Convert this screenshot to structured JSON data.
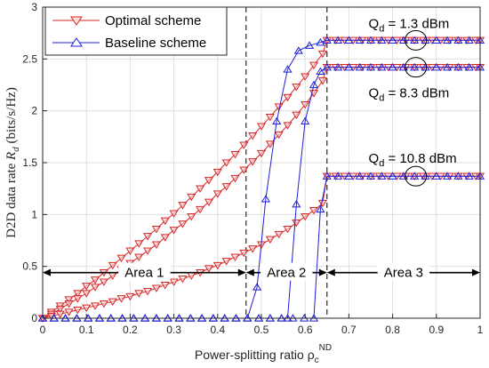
{
  "chart_data": {
    "type": "line",
    "xlabel": "Power-splitting ratio ρ",
    "xlabel_sub": "c",
    "xlabel_sup": "ND",
    "ylabel": "D2D data rate ",
    "ylabel_var": "R",
    "ylabel_sub": "d",
    "ylabel_unit": " (bits/s/Hz)",
    "xlim": [
      0,
      1
    ],
    "ylim": [
      0,
      3
    ],
    "xticks": [
      "0",
      "0.1",
      "0.2",
      "0.3",
      "0.4",
      "0.5",
      "0.6",
      "0.7",
      "0.8",
      "0.9",
      "1"
    ],
    "yticks": [
      "0",
      "0.5",
      "1",
      "1.5",
      "2",
      "2.5",
      "3"
    ],
    "grid": true,
    "legend_position": "top-left",
    "series": [
      {
        "name": "Optimal scheme",
        "color": "#d62728",
        "marker": "triangle-down",
        "groups": [
          {
            "x": [
              0,
              0.02,
              0.04,
              0.06,
              0.08,
              0.1,
              0.12,
              0.14,
              0.16,
              0.18,
              0.2,
              0.22,
              0.24,
              0.26,
              0.28,
              0.3,
              0.32,
              0.34,
              0.36,
              0.38,
              0.4,
              0.42,
              0.44,
              0.46,
              0.48,
              0.5,
              0.52,
              0.54,
              0.56,
              0.58,
              0.6,
              0.62,
              0.64,
              0.65,
              0.67,
              0.69,
              0.71,
              0.73,
              0.75,
              0.77,
              0.79,
              0.81,
              0.83,
              0.85,
              0.87,
              0.89,
              0.91,
              0.93,
              0.95,
              0.97,
              0.99,
              1.0
            ],
            "y": [
              0,
              0.06,
              0.12,
              0.18,
              0.24,
              0.31,
              0.37,
              0.44,
              0.51,
              0.58,
              0.65,
              0.72,
              0.79,
              0.86,
              0.94,
              1.01,
              1.09,
              1.17,
              1.25,
              1.33,
              1.41,
              1.5,
              1.58,
              1.67,
              1.76,
              1.85,
              1.94,
              2.04,
              2.13,
              2.23,
              2.33,
              2.44,
              2.55,
              2.68,
              2.68,
              2.68,
              2.68,
              2.68,
              2.68,
              2.68,
              2.68,
              2.68,
              2.68,
              2.68,
              2.68,
              2.68,
              2.68,
              2.68,
              2.68,
              2.68,
              2.68,
              2.68
            ]
          },
          {
            "x": [
              0,
              0.02,
              0.04,
              0.06,
              0.08,
              0.1,
              0.12,
              0.14,
              0.16,
              0.18,
              0.2,
              0.22,
              0.24,
              0.26,
              0.28,
              0.3,
              0.32,
              0.34,
              0.36,
              0.38,
              0.4,
              0.42,
              0.44,
              0.46,
              0.48,
              0.5,
              0.52,
              0.54,
              0.56,
              0.58,
              0.6,
              0.62,
              0.64,
              0.65,
              0.67,
              0.69,
              0.71,
              0.73,
              0.75,
              0.77,
              0.79,
              0.81,
              0.83,
              0.85,
              0.87,
              0.89,
              0.91,
              0.93,
              0.95,
              0.97,
              0.99,
              1.0
            ],
            "y": [
              0,
              0.04,
              0.09,
              0.14,
              0.19,
              0.24,
              0.3,
              0.35,
              0.41,
              0.47,
              0.53,
              0.59,
              0.65,
              0.71,
              0.78,
              0.85,
              0.91,
              0.98,
              1.05,
              1.12,
              1.2,
              1.27,
              1.35,
              1.43,
              1.51,
              1.59,
              1.68,
              1.77,
              1.86,
              1.96,
              2.06,
              2.17,
              2.29,
              2.42,
              2.42,
              2.42,
              2.42,
              2.42,
              2.42,
              2.42,
              2.42,
              2.42,
              2.42,
              2.42,
              2.42,
              2.42,
              2.42,
              2.42,
              2.42,
              2.42,
              2.42,
              2.42
            ]
          },
          {
            "x": [
              0,
              0.02,
              0.04,
              0.06,
              0.08,
              0.1,
              0.12,
              0.14,
              0.16,
              0.18,
              0.2,
              0.22,
              0.24,
              0.26,
              0.28,
              0.3,
              0.32,
              0.34,
              0.36,
              0.38,
              0.4,
              0.42,
              0.44,
              0.46,
              0.48,
              0.5,
              0.52,
              0.54,
              0.56,
              0.58,
              0.6,
              0.62,
              0.64,
              0.65,
              0.67,
              0.69,
              0.71,
              0.73,
              0.75,
              0.77,
              0.79,
              0.81,
              0.83,
              0.85,
              0.87,
              0.89,
              0.91,
              0.93,
              0.95,
              0.97,
              0.99,
              1.0
            ],
            "y": [
              0,
              0.02,
              0.04,
              0.06,
              0.08,
              0.1,
              0.12,
              0.14,
              0.16,
              0.19,
              0.21,
              0.24,
              0.26,
              0.29,
              0.32,
              0.35,
              0.38,
              0.41,
              0.44,
              0.48,
              0.51,
              0.55,
              0.59,
              0.63,
              0.67,
              0.71,
              0.76,
              0.81,
              0.86,
              0.92,
              0.98,
              1.04,
              1.11,
              1.37,
              1.37,
              1.37,
              1.37,
              1.37,
              1.37,
              1.37,
              1.37,
              1.37,
              1.37,
              1.37,
              1.37,
              1.37,
              1.37,
              1.37,
              1.37,
              1.37,
              1.37,
              1.37
            ]
          }
        ]
      },
      {
        "name": "Baseline scheme",
        "color": "#1f1fd6",
        "marker": "triangle-up",
        "groups": [
          {
            "x": [
              0,
              0.026,
              0.052,
              0.078,
              0.104,
              0.13,
              0.156,
              0.182,
              0.208,
              0.234,
              0.26,
              0.286,
              0.312,
              0.338,
              0.364,
              0.39,
              0.416,
              0.442,
              0.468,
              0.49,
              0.51,
              0.535,
              0.56,
              0.585,
              0.61,
              0.635,
              0.65,
              0.675,
              0.7,
              0.725,
              0.75,
              0.775,
              0.8,
              0.825,
              0.85,
              0.875,
              0.9,
              0.925,
              0.95,
              0.975,
              1.0
            ],
            "y": [
              0,
              0,
              0,
              0,
              0,
              0,
              0,
              0,
              0,
              0,
              0,
              0,
              0,
              0,
              0,
              0,
              0,
              0,
              0,
              0.3,
              1.15,
              1.9,
              2.4,
              2.58,
              2.63,
              2.66,
              2.68,
              2.68,
              2.68,
              2.68,
              2.68,
              2.68,
              2.68,
              2.68,
              2.68,
              2.68,
              2.68,
              2.68,
              2.68,
              2.68,
              2.68
            ]
          },
          {
            "x": [
              0,
              0.026,
              0.052,
              0.078,
              0.104,
              0.13,
              0.156,
              0.182,
              0.208,
              0.234,
              0.26,
              0.286,
              0.312,
              0.338,
              0.364,
              0.39,
              0.416,
              0.442,
              0.468,
              0.494,
              0.52,
              0.546,
              0.56,
              0.58,
              0.6,
              0.62,
              0.635,
              0.65,
              0.675,
              0.7,
              0.725,
              0.75,
              0.775,
              0.8,
              0.825,
              0.85,
              0.875,
              0.9,
              0.925,
              0.95,
              0.975,
              1.0
            ],
            "y": [
              0,
              0,
              0,
              0,
              0,
              0,
              0,
              0,
              0,
              0,
              0,
              0,
              0,
              0,
              0,
              0,
              0,
              0,
              0,
              0,
              0,
              0,
              0,
              1.1,
              1.9,
              2.25,
              2.38,
              2.42,
              2.42,
              2.42,
              2.42,
              2.42,
              2.42,
              2.42,
              2.42,
              2.42,
              2.42,
              2.42,
              2.42,
              2.42,
              2.42,
              2.42
            ]
          },
          {
            "x": [
              0,
              0.026,
              0.052,
              0.078,
              0.104,
              0.13,
              0.156,
              0.182,
              0.208,
              0.234,
              0.26,
              0.286,
              0.312,
              0.338,
              0.364,
              0.39,
              0.416,
              0.442,
              0.468,
              0.494,
              0.52,
              0.546,
              0.572,
              0.598,
              0.62,
              0.635,
              0.65,
              0.675,
              0.7,
              0.725,
              0.75,
              0.775,
              0.8,
              0.825,
              0.85,
              0.875,
              0.9,
              0.925,
              0.95,
              0.975,
              1.0
            ],
            "y": [
              0,
              0,
              0,
              0,
              0,
              0,
              0,
              0,
              0,
              0,
              0,
              0,
              0,
              0,
              0,
              0,
              0,
              0,
              0,
              0,
              0,
              0,
              0,
              0,
              0,
              1.05,
              1.37,
              1.37,
              1.37,
              1.37,
              1.37,
              1.37,
              1.37,
              1.37,
              1.37,
              1.37,
              1.37,
              1.37,
              1.37,
              1.37,
              1.37
            ]
          }
        ]
      }
    ],
    "vlines_dashed": [
      0.465,
      0.65
    ],
    "areas": [
      {
        "label": "Area 1",
        "from": 0,
        "to": 0.465,
        "y": 0.44
      },
      {
        "label": "Area 2",
        "from": 0.465,
        "to": 0.65,
        "y": 0.44
      },
      {
        "label": "Area 3",
        "from": 0.65,
        "to": 1.0,
        "y": 0.44
      }
    ],
    "annotations": [
      {
        "main": "Q",
        "sub": "d",
        "rest": " = 1.3 dBm",
        "x": 0.745,
        "y": 2.8
      },
      {
        "main": "Q",
        "sub": "d",
        "rest": " = 8.3 dBm",
        "x": 0.745,
        "y": 2.13
      },
      {
        "main": "Q",
        "sub": "d",
        "rest": " = 10.8 dBm",
        "x": 0.745,
        "y": 1.5
      }
    ],
    "circles": [
      {
        "x": 0.853,
        "y": 2.68
      },
      {
        "x": 0.853,
        "y": 2.42
      },
      {
        "x": 0.853,
        "y": 1.37
      }
    ]
  }
}
